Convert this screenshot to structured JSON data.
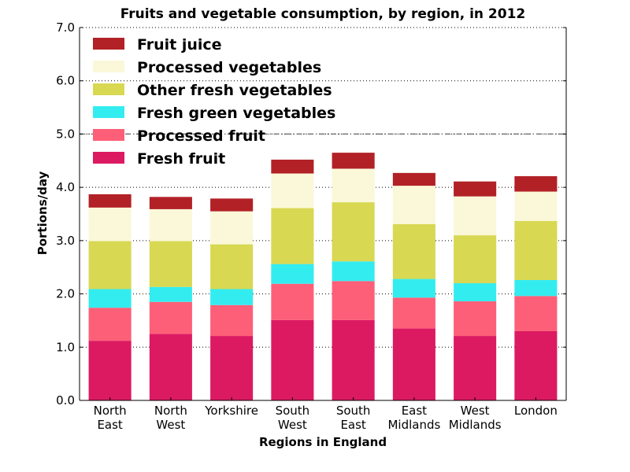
{
  "chart_data": {
    "type": "bar",
    "stacked": true,
    "title": "Fruits and vegetable consumption, by region, in 2012",
    "xlabel": "Regions in England",
    "ylabel": "Portions/day",
    "ylim": [
      0,
      7
    ],
    "yticks": [
      "0.0",
      "1.0",
      "2.0",
      "3.0",
      "4.0",
      "5.0",
      "6.0",
      "7.0"
    ],
    "grid": "horizontal dotted",
    "reference_line": 5.0,
    "legend_position": "top-left",
    "categories": [
      [
        "North",
        "East"
      ],
      [
        "North",
        "West"
      ],
      [
        "Yorkshire"
      ],
      [
        "South",
        "West"
      ],
      [
        "South",
        "East"
      ],
      [
        "East",
        "Midlands"
      ],
      [
        "West",
        "Midlands"
      ],
      [
        "London"
      ]
    ],
    "series": [
      {
        "name": "Fresh fruit",
        "color": "#dc1a62",
        "values": [
          1.12,
          1.25,
          1.21,
          1.51,
          1.51,
          1.35,
          1.21,
          1.3
        ]
      },
      {
        "name": "Processed fruit",
        "color": "#fe5f78",
        "values": [
          0.62,
          0.6,
          0.58,
          0.68,
          0.73,
          0.58,
          0.65,
          0.66
        ]
      },
      {
        "name": "Fresh green vegetables",
        "color": "#33ecf0",
        "values": [
          0.35,
          0.28,
          0.3,
          0.37,
          0.37,
          0.35,
          0.34,
          0.3
        ]
      },
      {
        "name": "Other fresh vegetables",
        "color": "#d8d853",
        "values": [
          0.9,
          0.86,
          0.84,
          1.05,
          1.11,
          1.03,
          0.9,
          1.11
        ]
      },
      {
        "name": "Processed vegetables",
        "color": "#faf8d8",
        "values": [
          0.63,
          0.6,
          0.62,
          0.65,
          0.63,
          0.72,
          0.73,
          0.55
        ]
      },
      {
        "name": "Fruit juice",
        "color": "#b22126",
        "values": [
          0.25,
          0.23,
          0.24,
          0.26,
          0.3,
          0.24,
          0.28,
          0.29
        ]
      }
    ]
  }
}
